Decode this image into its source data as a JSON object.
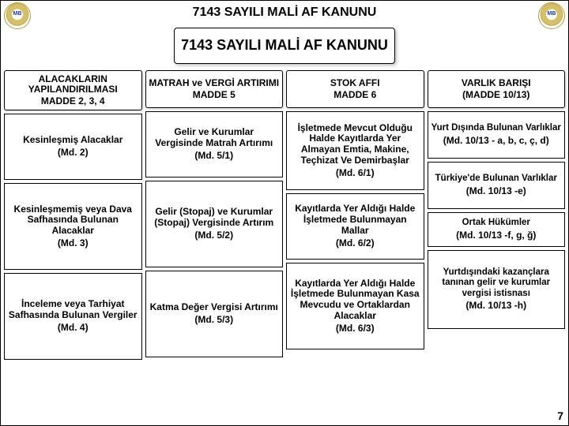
{
  "header": {
    "title": "7143 SAYILI  MALİ AF KANUNU"
  },
  "hero": {
    "title": "7143 SAYILI MALİ  AF KANUNU"
  },
  "page_number": "7",
  "columns": [
    {
      "head": {
        "line1": "ALACAKLARIN YAPILANDIRILMASI",
        "line2": "MADDE 2, 3, 4"
      },
      "cells": [
        {
          "main": "Kesinleşmiş Alacaklar",
          "ref": "(Md. 2)"
        },
        {
          "main": "Kesinleşmemiş veya Dava Safhasında Bulunan Alacaklar",
          "ref": "(Md. 3)"
        },
        {
          "main": "İnceleme veya Tarhiyat Safhasında Bulunan Vergiler",
          "ref": "(Md. 4)"
        }
      ]
    },
    {
      "head": {
        "line1": "MATRAH ve VERGİ ARTIRIMI",
        "line2": "MADDE 5"
      },
      "cells": [
        {
          "main": "Gelir ve Kurumlar Vergisinde Matrah Artırımı",
          "ref": "(Md. 5/1)"
        },
        {
          "main": "Gelir (Stopaj) ve Kurumlar (Stopaj) Vergisinde Artırım",
          "ref": "(Md. 5/2)"
        },
        {
          "main": "Katma Değer Vergisi Artırımı",
          "ref": "(Md. 5/3)"
        }
      ]
    },
    {
      "head": {
        "line1": "STOK AFFI",
        "line2": "MADDE 6"
      },
      "cells": [
        {
          "main": "İşletmede Mevcut Olduğu Halde Kayıtlarda Yer Almayan Emtia, Makine, Teçhizat Ve Demirbaşlar",
          "ref": "(Md. 6/1)"
        },
        {
          "main": "Kayıtlarda Yer Aldığı Halde İşletmede Bulunmayan Mallar",
          "ref": "(Md. 6/2)"
        },
        {
          "main": "Kayıtlarda Yer Aldığı Halde İşletmede Bulunmayan Kasa Mevcudu ve Ortaklardan Alacaklar",
          "ref": "(Md. 6/3)"
        }
      ]
    },
    {
      "head": {
        "line1": "VARLIK BARIŞI",
        "line2": "(MADDE 10/13)"
      },
      "groups": [
        {
          "main": "Yurt Dışında Bulunan Varlıklar",
          "ref": "(Md. 10/13 - a, b, c, ç, d)"
        },
        {
          "main": "Türkiye'de Bulunan Varlıklar",
          "ref": "(Md. 10/13 -e)"
        },
        {
          "main": "Ortak Hükümler",
          "ref": "(Md. 10/13 -f, g, ğ)"
        },
        {
          "main": "Yurtdışındaki kazançlara tanınan gelir ve kurumlar vergisi istisnası",
          "ref": "(Md. 10/13 -h)"
        }
      ]
    }
  ],
  "style": {
    "accent": "#2a4ea0",
    "border": "#000000",
    "background": "#ffffff",
    "header_fontsize": 16,
    "hero_fontsize": 18,
    "cell_fontsize": 12
  }
}
